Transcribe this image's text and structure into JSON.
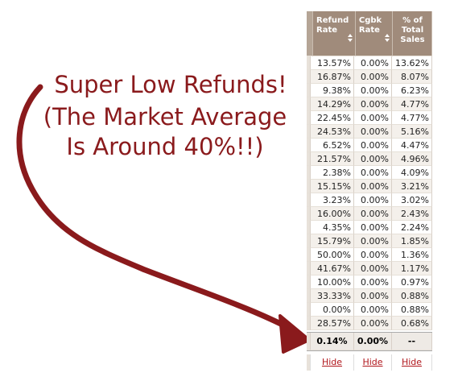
{
  "annotation": {
    "lines": [
      "Super Low Refunds!",
      "(The Market Average",
      "Is Around 40%!!)"
    ]
  },
  "table": {
    "columns": [
      "Refund Rate",
      "Cgbk Rate",
      "% of Total Sales"
    ],
    "rows": [
      [
        "13.57%",
        "0.00%",
        "13.62%"
      ],
      [
        "16.87%",
        "0.00%",
        "8.07%"
      ],
      [
        "9.38%",
        "0.00%",
        "6.23%"
      ],
      [
        "14.29%",
        "0.00%",
        "4.77%"
      ],
      [
        "22.45%",
        "0.00%",
        "4.77%"
      ],
      [
        "24.53%",
        "0.00%",
        "5.16%"
      ],
      [
        "6.52%",
        "0.00%",
        "4.47%"
      ],
      [
        "21.57%",
        "0.00%",
        "4.96%"
      ],
      [
        "2.38%",
        "0.00%",
        "4.09%"
      ],
      [
        "15.15%",
        "0.00%",
        "3.21%"
      ],
      [
        "3.23%",
        "0.00%",
        "3.02%"
      ],
      [
        "16.00%",
        "0.00%",
        "2.43%"
      ],
      [
        "4.35%",
        "0.00%",
        "2.24%"
      ],
      [
        "15.79%",
        "0.00%",
        "1.85%"
      ],
      [
        "50.00%",
        "0.00%",
        "1.36%"
      ],
      [
        "41.67%",
        "0.00%",
        "1.17%"
      ],
      [
        "10.00%",
        "0.00%",
        "0.97%"
      ],
      [
        "33.33%",
        "0.00%",
        "0.88%"
      ],
      [
        "0.00%",
        "0.00%",
        "0.88%"
      ],
      [
        "28.57%",
        "0.00%",
        "0.68%"
      ]
    ],
    "totals": [
      "0.14%",
      "0.00%",
      "--"
    ],
    "actions": [
      "Hide",
      "Hide",
      "Hide"
    ]
  }
}
